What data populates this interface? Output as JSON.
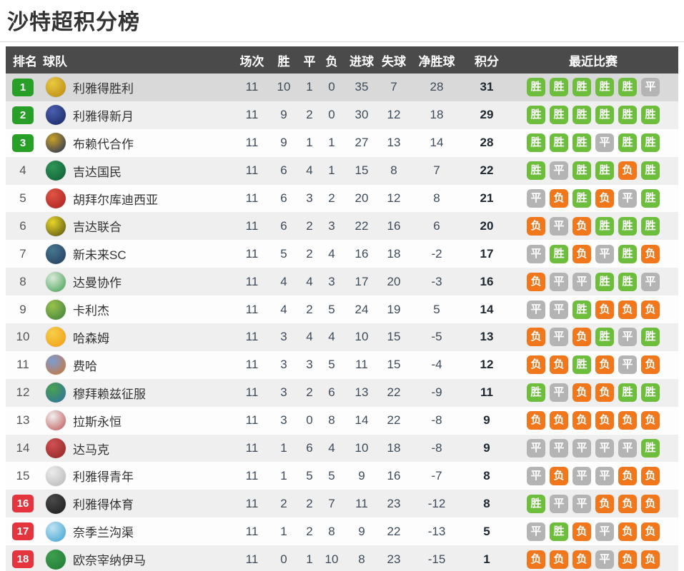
{
  "page": {
    "title": "沙特超积分榜"
  },
  "table": {
    "headers": {
      "rank": "排名",
      "team": "球队",
      "played": "场次",
      "win": "胜",
      "draw": "平",
      "loss": "负",
      "gf": "进球",
      "ga": "失球",
      "gd": "净胜球",
      "pts": "积分",
      "recent": "最近比赛"
    },
    "result_labels": {
      "win": "胜",
      "draw": "平",
      "loss": "负"
    },
    "colors": {
      "header_bg": "#4a4a4a",
      "win_badge": "#6dbe3c",
      "draw_badge": "#b4b4b4",
      "loss_badge": "#f0771c",
      "promotion_rank": "#28a028",
      "relegation_rank": "#e4353f",
      "highlight_row": "#d9d9d9"
    },
    "rows": [
      {
        "rank": "1",
        "rank_style": "promo",
        "team": "利雅得胜利",
        "logo_colors": [
          "#e9c943",
          "#b8860b"
        ],
        "played": 11,
        "win": 10,
        "draw": 1,
        "loss": 0,
        "gf": 35,
        "ga": 7,
        "gd": 28,
        "pts": 31,
        "recent": [
          "win",
          "win",
          "win",
          "win",
          "win",
          "draw"
        ]
      },
      {
        "rank": "2",
        "rank_style": "promo",
        "team": "利雅得新月",
        "logo_colors": [
          "#4a5fb0",
          "#16245e"
        ],
        "played": 11,
        "win": 9,
        "draw": 2,
        "loss": 0,
        "gf": 30,
        "ga": 12,
        "gd": 18,
        "pts": 29,
        "recent": [
          "win",
          "win",
          "win",
          "win",
          "win",
          "win"
        ]
      },
      {
        "rank": "3",
        "rank_style": "promo",
        "team": "布赖代合作",
        "logo_colors": [
          "#c9a227",
          "#1d2b5a"
        ],
        "played": 11,
        "win": 9,
        "draw": 1,
        "loss": 1,
        "gf": 27,
        "ga": 13,
        "gd": 14,
        "pts": 28,
        "recent": [
          "win",
          "win",
          "win",
          "draw",
          "win",
          "win"
        ]
      },
      {
        "rank": "4",
        "rank_style": "plain",
        "team": "吉达国民",
        "logo_colors": [
          "#2d9657",
          "#0f5c33"
        ],
        "played": 11,
        "win": 6,
        "draw": 4,
        "loss": 1,
        "gf": 15,
        "ga": 8,
        "gd": 7,
        "pts": 22,
        "recent": [
          "win",
          "draw",
          "win",
          "win",
          "loss",
          "win"
        ]
      },
      {
        "rank": "5",
        "rank_style": "plain",
        "team": "胡拜尔库迪西亚",
        "logo_colors": [
          "#e05545",
          "#a82020"
        ],
        "played": 11,
        "win": 6,
        "draw": 3,
        "loss": 2,
        "gf": 20,
        "ga": 12,
        "gd": 8,
        "pts": 21,
        "recent": [
          "draw",
          "loss",
          "win",
          "loss",
          "draw",
          "win"
        ]
      },
      {
        "rank": "6",
        "rank_style": "plain",
        "team": "吉达联合",
        "logo_colors": [
          "#e8d62a",
          "#514c10"
        ],
        "played": 11,
        "win": 6,
        "draw": 2,
        "loss": 3,
        "gf": 22,
        "ga": 16,
        "gd": 6,
        "pts": 20,
        "recent": [
          "loss",
          "draw",
          "loss",
          "win",
          "win",
          "win"
        ]
      },
      {
        "rank": "7",
        "rank_style": "plain",
        "team": "新未来SC",
        "logo_colors": [
          "#46788f",
          "#23395e"
        ],
        "played": 11,
        "win": 5,
        "draw": 2,
        "loss": 4,
        "gf": 16,
        "ga": 18,
        "gd": -2,
        "pts": 17,
        "recent": [
          "draw",
          "win",
          "loss",
          "draw",
          "win",
          "loss"
        ]
      },
      {
        "rank": "8",
        "rank_style": "plain",
        "team": "达曼协作",
        "logo_colors": [
          "#d9ead9",
          "#3f9e4f"
        ],
        "played": 11,
        "win": 4,
        "draw": 4,
        "loss": 3,
        "gf": 17,
        "ga": 20,
        "gd": -3,
        "pts": 16,
        "recent": [
          "loss",
          "draw",
          "draw",
          "win",
          "win",
          "draw"
        ]
      },
      {
        "rank": "9",
        "rank_style": "plain",
        "team": "卡利杰",
        "logo_colors": [
          "#9bc24d",
          "#3a7d3a"
        ],
        "played": 11,
        "win": 4,
        "draw": 2,
        "loss": 5,
        "gf": 24,
        "ga": 19,
        "gd": 5,
        "pts": 14,
        "recent": [
          "draw",
          "draw",
          "win",
          "loss",
          "loss",
          "loss"
        ]
      },
      {
        "rank": "10",
        "rank_style": "plain",
        "team": "哈森姆",
        "logo_colors": [
          "#f7cf4a",
          "#ef9a12"
        ],
        "played": 11,
        "win": 3,
        "draw": 4,
        "loss": 4,
        "gf": 10,
        "ga": 15,
        "gd": -5,
        "pts": 13,
        "recent": [
          "loss",
          "draw",
          "loss",
          "win",
          "draw",
          "win"
        ]
      },
      {
        "rank": "11",
        "rank_style": "plain",
        "team": "费哈",
        "logo_colors": [
          "#7a9fd4",
          "#d0722e"
        ],
        "played": 11,
        "win": 3,
        "draw": 3,
        "loss": 5,
        "gf": 11,
        "ga": 15,
        "gd": -4,
        "pts": 12,
        "recent": [
          "loss",
          "loss",
          "win",
          "loss",
          "draw",
          "loss"
        ]
      },
      {
        "rank": "12",
        "rank_style": "plain",
        "team": "穆拜赖兹征服",
        "logo_colors": [
          "#49a24d",
          "#2e6ea8"
        ],
        "played": 11,
        "win": 3,
        "draw": 2,
        "loss": 6,
        "gf": 13,
        "ga": 22,
        "gd": -9,
        "pts": 11,
        "recent": [
          "win",
          "draw",
          "loss",
          "loss",
          "win",
          "win"
        ]
      },
      {
        "rank": "13",
        "rank_style": "plain",
        "team": "拉斯永恒",
        "logo_colors": [
          "#f0f0f0",
          "#c05050"
        ],
        "played": 11,
        "win": 3,
        "draw": 0,
        "loss": 8,
        "gf": 14,
        "ga": 22,
        "gd": -8,
        "pts": 9,
        "recent": [
          "loss",
          "loss",
          "loss",
          "loss",
          "loss",
          "loss"
        ]
      },
      {
        "rank": "14",
        "rank_style": "plain",
        "team": "达马克",
        "logo_colors": [
          "#d05050",
          "#8f2525"
        ],
        "played": 11,
        "win": 1,
        "draw": 6,
        "loss": 4,
        "gf": 10,
        "ga": 18,
        "gd": -8,
        "pts": 9,
        "recent": [
          "draw",
          "draw",
          "draw",
          "draw",
          "draw",
          "win"
        ]
      },
      {
        "rank": "15",
        "rank_style": "plain",
        "team": "利雅得青年",
        "logo_colors": [
          "#ececec",
          "#b5b5b5"
        ],
        "played": 11,
        "win": 1,
        "draw": 5,
        "loss": 5,
        "gf": 9,
        "ga": 16,
        "gd": -7,
        "pts": 8,
        "recent": [
          "draw",
          "loss",
          "draw",
          "draw",
          "loss",
          "loss"
        ]
      },
      {
        "rank": "16",
        "rank_style": "releg",
        "team": "利雅得体育",
        "logo_colors": [
          "#4a4a4a",
          "#1a1a1a"
        ],
        "played": 11,
        "win": 2,
        "draw": 2,
        "loss": 7,
        "gf": 11,
        "ga": 23,
        "gd": -12,
        "pts": 8,
        "recent": [
          "win",
          "draw",
          "draw",
          "loss",
          "loss",
          "loss"
        ]
      },
      {
        "rank": "17",
        "rank_style": "releg",
        "team": "奈季兰沟渠",
        "logo_colors": [
          "#bfe3f2",
          "#3aa0d0"
        ],
        "played": 11,
        "win": 1,
        "draw": 2,
        "loss": 8,
        "gf": 9,
        "ga": 22,
        "gd": -13,
        "pts": 5,
        "recent": [
          "draw",
          "win",
          "loss",
          "draw",
          "loss",
          "loss"
        ]
      },
      {
        "rank": "18",
        "rank_style": "releg",
        "team": "欧奈宰纳伊马",
        "logo_colors": [
          "#3f9e4f",
          "#1f7a35"
        ],
        "played": 11,
        "win": 0,
        "draw": 1,
        "loss": 10,
        "gf": 8,
        "ga": 23,
        "gd": -15,
        "pts": 1,
        "recent": [
          "loss",
          "loss",
          "loss",
          "draw",
          "loss",
          "loss"
        ]
      }
    ]
  }
}
